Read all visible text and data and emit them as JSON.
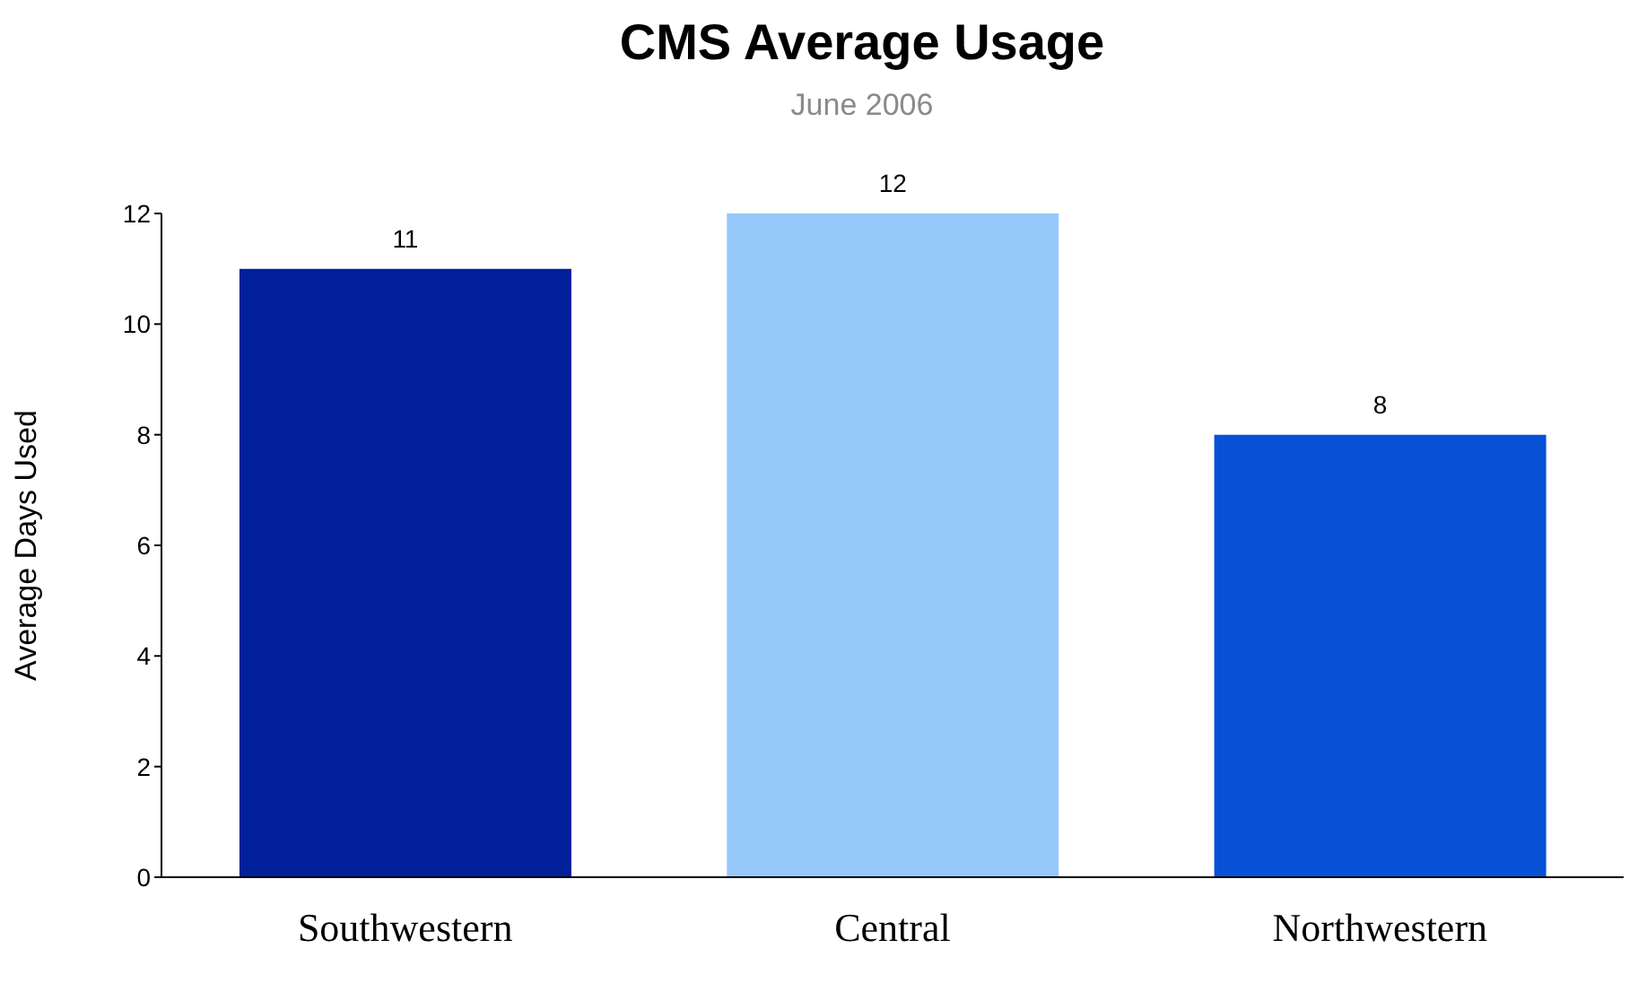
{
  "chart_data": {
    "type": "bar",
    "title": "CMS Average Usage",
    "subtitle": "June 2006",
    "ylabel": "Average Days Used",
    "categories": [
      "Southwestern",
      "Central",
      "Northwestern"
    ],
    "values": [
      11,
      12,
      8
    ],
    "colors": [
      "#03209b",
      "#96c8fc",
      "#0751d6"
    ],
    "ylim": [
      0,
      12
    ],
    "yticks": [
      0,
      2,
      4,
      6,
      8,
      10,
      12
    ],
    "data_labels": true,
    "grid": false
  }
}
